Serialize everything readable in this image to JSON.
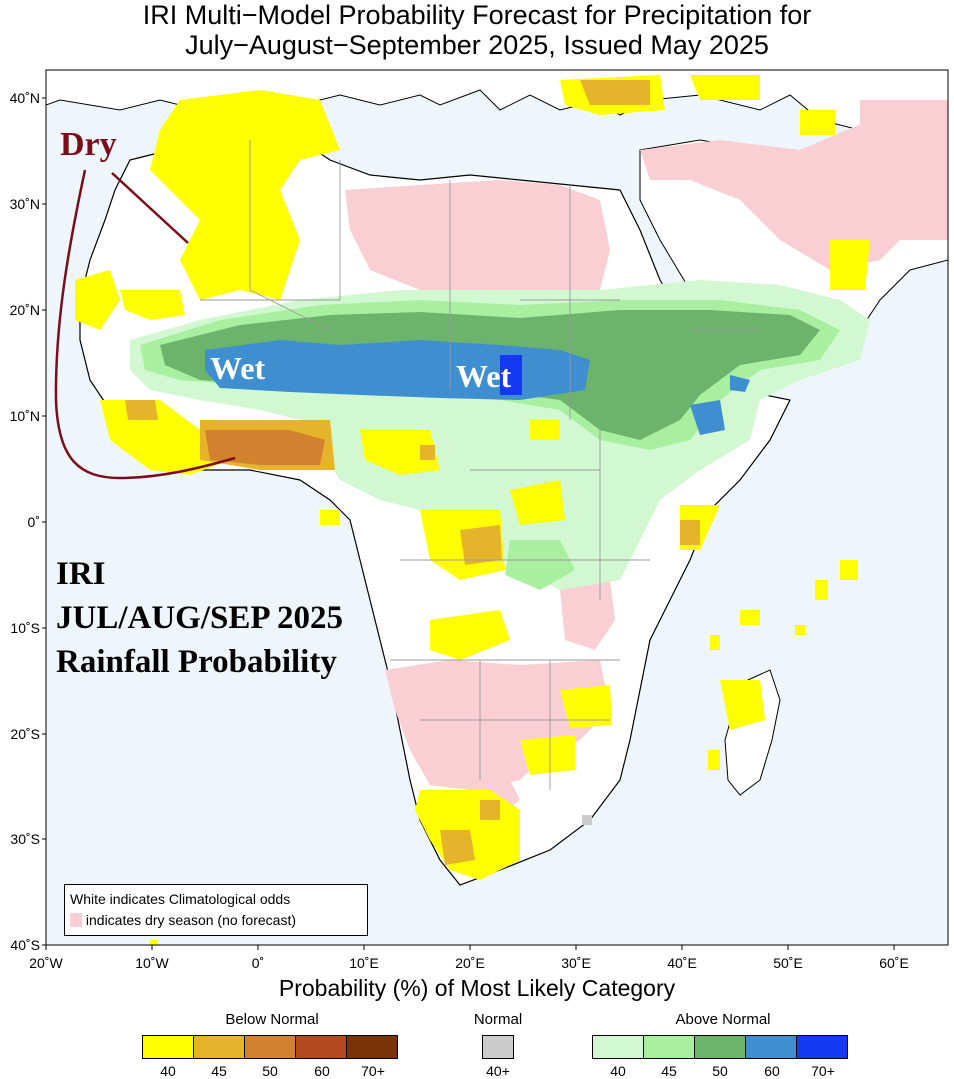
{
  "title": {
    "line1": "IRI Multi−Model Probability Forecast for Precipitation for",
    "line2": "July−August−September 2025, Issued May 2025"
  },
  "map": {
    "ocean_color": "#eef6fc",
    "land_color": "#ffffff",
    "lat_labels": [
      "40˚N",
      "30˚N",
      "20˚N",
      "10˚N",
      "0˚",
      "10˚S",
      "20˚S",
      "30˚S",
      "40˚S"
    ],
    "lon_labels": [
      "20˚W",
      "10˚W",
      "0˚",
      "10˚E",
      "20˚E",
      "30˚E",
      "40˚E",
      "50˚E",
      "60˚E"
    ],
    "x_axis_label": "Probability (%) of Most Likely Category"
  },
  "annotations": {
    "dry": "Dry",
    "wet_west": "Wet",
    "wet_east": "Wet",
    "iri_line1": "IRI",
    "iri_line2": "JUL/AUG/SEP 2025",
    "iri_line3": "Rainfall Probability"
  },
  "inset_legend": {
    "line1": "White indicates Climatological odds",
    "line2": " indicates dry season (no forecast)",
    "dry_season_color": "#f9cfd3"
  },
  "colorbars": {
    "below": {
      "title": "Below Normal",
      "colors": [
        "#ffff00",
        "#e6b42a",
        "#d2822e",
        "#b24a1d",
        "#7a3306"
      ],
      "ticks": [
        "40",
        "45",
        "50",
        "60",
        "70+"
      ]
    },
    "normal": {
      "title": "Normal",
      "colors": [
        "#cccccc"
      ],
      "ticks": [
        "40+"
      ]
    },
    "above": {
      "title": "Above Normal",
      "colors": [
        "#d2f8d2",
        "#a8f0a0",
        "#6cb46c",
        "#3f8fd0",
        "#1538f5"
      ],
      "ticks": [
        "40",
        "45",
        "50",
        "60",
        "70+"
      ]
    }
  }
}
